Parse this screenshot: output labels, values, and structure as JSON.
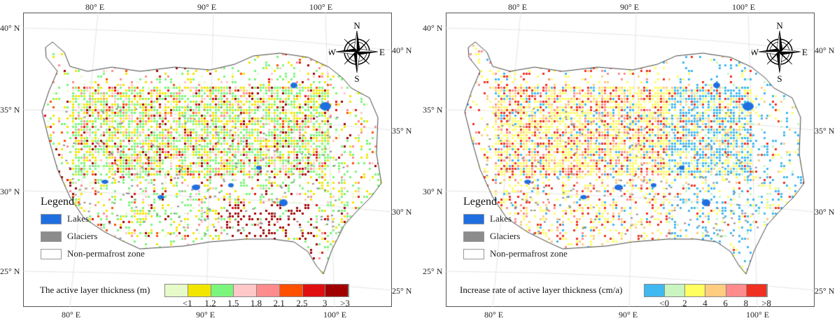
{
  "panels": [
    {
      "lon_labels": [
        "80° E",
        "90° E",
        "100° E"
      ],
      "lat_labels": [
        "40° N",
        "35° N",
        "30° N",
        "25° N"
      ],
      "compass": {
        "n": "N",
        "s": "S",
        "e": "E",
        "w": "W"
      },
      "legend": {
        "title": "Legend",
        "items": [
          {
            "label": "Lakes",
            "color": "#1f6fe0"
          },
          {
            "label": "Glaciers",
            "color": "#8c8c8c"
          },
          {
            "label": "Non-permafrost zone",
            "color": "#ffffff"
          }
        ]
      },
      "colorbar": {
        "title": "The active layer thickness (m)",
        "colors": [
          "#e6fbc8",
          "#f2e600",
          "#7cf57c",
          "#ffc8c8",
          "#ff8c8c",
          "#ff5000",
          "#e01010",
          "#a00000"
        ],
        "labels": [
          "<1",
          "1.2",
          "1.5",
          "1.8",
          "2.1",
          "2.5",
          "3",
          ">3"
        ]
      }
    },
    {
      "lon_labels": [
        "80° E",
        "90° E",
        "100° E"
      ],
      "lat_labels": [
        "40° N",
        "35° N",
        "30° N",
        "25° N"
      ],
      "compass": {
        "n": "N",
        "s": "S",
        "e": "E",
        "w": "W"
      },
      "legend": {
        "title": "Legend",
        "items": [
          {
            "label": "Lakes",
            "color": "#1f6fe0"
          },
          {
            "label": "Glaciers",
            "color": "#8c8c8c"
          },
          {
            "label": "Non-permafrost zone",
            "color": "#ffffff"
          }
        ]
      },
      "colorbar": {
        "title": "Increase rate of active layer thickness (cm/a)",
        "colors": [
          "#40b8f0",
          "#c8f5c0",
          "#ffff60",
          "#ffcc80",
          "#ff8c8c",
          "#f03020"
        ],
        "labels": [
          "<0",
          "2",
          "4",
          "6",
          "8",
          ">8"
        ]
      }
    }
  ]
}
